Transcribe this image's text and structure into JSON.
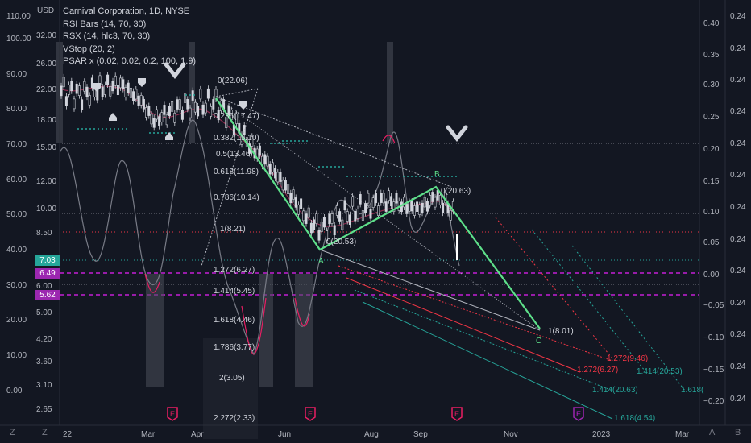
{
  "legend": {
    "title": "Carnival Corporation, 1D, NYSE",
    "ind1": "RSI Bars (14, 70, 30)",
    "ind2": "RSX (14, hlc3, 70, 30)",
    "ind3": "VStop (20, 2)",
    "ind4": "PSAR x (0.02, 0.02, 0.2, 100, 1.9)"
  },
  "scales": {
    "usd_label": "USD",
    "rsi_labels": [
      "110.00",
      "100.00",
      "90.00",
      "80.00",
      "70.00",
      "60.00",
      "50.00",
      "40.00",
      "30.00",
      "20.00",
      "10.00",
      "0.00"
    ],
    "price_labels": [
      "32.00",
      "26.00",
      "22.00",
      "18.00",
      "15.00",
      "12.00",
      "10.00",
      "8.50",
      "6.00",
      "5.00",
      "4.20",
      "3.60",
      "3.10",
      "2.65"
    ],
    "right1_labels": [
      "0.40",
      "0.35",
      "0.30",
      "0.25",
      "0.20",
      "0.15",
      "0.10",
      "0.05",
      "0.00",
      "−0.05",
      "−0.10",
      "−0.15",
      "−0.20"
    ],
    "right2_labels": [
      "0.24",
      "0.24",
      "0.24",
      "0.24",
      "0.24",
      "0.24",
      "0.24",
      "0.24",
      "0.24",
      "0.24",
      "0.24",
      "0.24",
      "0.24",
      "0.24"
    ]
  },
  "price_tags": [
    {
      "value": "7.03",
      "color": "#26a69a"
    },
    {
      "value": "6.49",
      "color": "#9c27b0"
    },
    {
      "value": "5.62",
      "color": "#9c27b0"
    }
  ],
  "fib_levels": [
    "0(22.06)",
    "0.236(17.47)",
    "0.382(15.10)",
    "0.5(13.46)",
    "0.618(11.98)",
    "0.786(10.14)",
    "1(8.21)",
    "1.272(6.27)",
    "1.414(5.45)",
    "1.618(4.46)",
    "1.786(3.77)",
    "2(3.05)",
    "2.272(2.33)"
  ],
  "wave_labels": {
    "a": "A",
    "b": "B",
    "c": "C",
    "b_value": "0(20.63)",
    "a_value": "0(20.53)",
    "c_value": "1(8.01)"
  },
  "proj_labels": [
    "1.272(9.46)",
    "1.272(6.27)",
    "1.414(20.53)",
    "1.414(20.63)",
    "1.618(4.54)",
    "1.618("
  ],
  "time_axis": {
    "labels": [
      "22",
      "Mar",
      "Apr",
      "Jun",
      "Aug",
      "Sep",
      "Nov",
      "2023",
      "Mar"
    ]
  },
  "event_markers": [
    "E",
    "E",
    "E",
    "E"
  ],
  "bottom_buttons": {
    "left": [
      "Z",
      "Z"
    ],
    "right": [
      "A",
      "B"
    ]
  },
  "colors": {
    "bg": "#131722",
    "wave": "#5ee08a",
    "fib": "#d1d4dc",
    "tag_green": "#26a69a",
    "tag_purple": "#9c27b0",
    "candle": "#d1d4dc"
  }
}
